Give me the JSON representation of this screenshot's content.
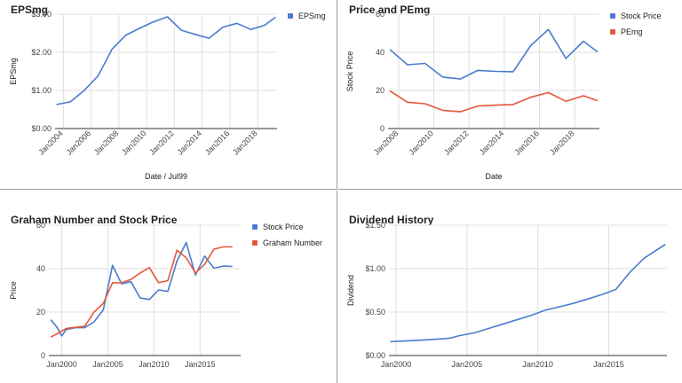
{
  "chart_data": [
    {
      "id": "eps",
      "type": "line",
      "title": "EPSmg",
      "xlabel": "Date / Jul99",
      "ylabel": "EPSmg",
      "x_type": "year",
      "xlim": [
        2003.4,
        2019.4
      ],
      "ylim": [
        0,
        3
      ],
      "yticks": [
        {
          "v": 0,
          "label": "$0.00"
        },
        {
          "v": 1,
          "label": "$1.00"
        },
        {
          "v": 2,
          "label": "$2.00"
        },
        {
          "v": 3,
          "label": "$3.00"
        }
      ],
      "xticks": [
        {
          "v": 2004,
          "label": "Jan2004"
        },
        {
          "v": 2006,
          "label": "Jan2006"
        },
        {
          "v": 2008,
          "label": "Jan2008"
        },
        {
          "v": 2010,
          "label": "Jan2010"
        },
        {
          "v": 2012,
          "label": "Jan2012"
        },
        {
          "v": 2014,
          "label": "Jan2014"
        },
        {
          "v": 2016,
          "label": "Jan2016"
        },
        {
          "v": 2018,
          "label": "Jan2018"
        }
      ],
      "x_label_style": "rotated",
      "legend": "right",
      "series": [
        {
          "name": "EPSmg",
          "color": "#4a7bd0",
          "x": [
            2003.5,
            2004.5,
            2005.5,
            2006.5,
            2007.5,
            2008.5,
            2009.5,
            2010.5,
            2011.5,
            2012.5,
            2013.5,
            2014.5,
            2015.5,
            2016.5,
            2017.5,
            2018.5,
            2019.3
          ],
          "y": [
            0.63,
            0.7,
            1.0,
            1.38,
            2.08,
            2.45,
            2.63,
            2.8,
            2.93,
            2.58,
            2.47,
            2.37,
            2.66,
            2.76,
            2.6,
            2.71,
            2.92
          ]
        }
      ]
    },
    {
      "id": "price",
      "type": "line",
      "title": "Price and PEmg",
      "xlabel": "Date",
      "ylabel": "Stock Price",
      "x_type": "year",
      "xlim": [
        2007.4,
        2019.4
      ],
      "ylim": [
        0,
        60
      ],
      "yticks": [
        {
          "v": 0,
          "label": "0"
        },
        {
          "v": 20,
          "label": "20"
        },
        {
          "v": 40,
          "label": "40"
        },
        {
          "v": 60,
          "label": "60"
        }
      ],
      "xticks": [
        {
          "v": 2008,
          "label": "Jan2008"
        },
        {
          "v": 2010,
          "label": "Jan2010"
        },
        {
          "v": 2012,
          "label": "Jan2012"
        },
        {
          "v": 2014,
          "label": "Jan2014"
        },
        {
          "v": 2016,
          "label": "Jan2016"
        },
        {
          "v": 2018,
          "label": "Jan2018"
        }
      ],
      "x_label_style": "rotated",
      "legend": "right",
      "series": [
        {
          "name": "Stock Price",
          "color": "#4a7bd0",
          "x": [
            2007.5,
            2008.5,
            2009.5,
            2010.5,
            2011.5,
            2012.5,
            2013.5,
            2014.5,
            2015.5,
            2016.5,
            2017.5,
            2018.5,
            2019.3
          ],
          "y": [
            41.5,
            33.5,
            34.2,
            27.0,
            26.0,
            30.5,
            30.0,
            29.8,
            43.5,
            52.0,
            36.8,
            45.8,
            40.2
          ]
        },
        {
          "name": "PEmg",
          "color": "#e4573b",
          "x": [
            2007.5,
            2008.5,
            2009.5,
            2010.5,
            2011.5,
            2012.5,
            2013.5,
            2014.5,
            2015.5,
            2016.5,
            2017.5,
            2018.5,
            2019.3
          ],
          "y": [
            19.8,
            13.8,
            13.0,
            9.6,
            8.8,
            11.8,
            12.3,
            12.6,
            16.4,
            18.9,
            14.3,
            17.2,
            14.6
          ]
        }
      ]
    },
    {
      "id": "graham",
      "type": "line",
      "title": "Graham Number and Stock Price",
      "xlabel": "",
      "ylabel": "Price",
      "x_type": "year",
      "xlim": [
        1998.6,
        2019.4
      ],
      "ylim": [
        0,
        60
      ],
      "yticks": [
        {
          "v": 0,
          "label": "0"
        },
        {
          "v": 20,
          "label": "20"
        },
        {
          "v": 40,
          "label": "40"
        },
        {
          "v": 60,
          "label": "60"
        }
      ],
      "xticks": [
        {
          "v": 2000,
          "label": "Jan2000"
        },
        {
          "v": 2005,
          "label": "Jan2005"
        },
        {
          "v": 2010,
          "label": "Jan2010"
        },
        {
          "v": 2015,
          "label": "Jan2015"
        }
      ],
      "x_label_style": "flat",
      "legend": "right",
      "series": [
        {
          "name": "Stock Price",
          "color": "#4a7bd0",
          "x": [
            1998.8,
            1999.5,
            2000.0,
            2000.5,
            2001.5,
            2002.5,
            2003.5,
            2004.5,
            2005.5,
            2006.5,
            2007.5,
            2008.5,
            2009.5,
            2010.5,
            2011.5,
            2012.5,
            2013.5,
            2014.5,
            2015.5,
            2016.5,
            2017.5,
            2018.5
          ],
          "y": [
            16.5,
            13.0,
            9.0,
            12.0,
            12.8,
            12.8,
            15.5,
            21.0,
            41.5,
            33.0,
            34.0,
            26.5,
            25.8,
            30.2,
            29.5,
            43.5,
            52.0,
            37.0,
            45.8,
            40.2,
            41.2,
            41.0
          ]
        },
        {
          "name": "Graham Number",
          "color": "#e4573b",
          "x": [
            1998.8,
            1999.5,
            2000.5,
            2001.5,
            2002.5,
            2003.5,
            2004.5,
            2005.5,
            2006.5,
            2007.5,
            2008.5,
            2009.5,
            2010.5,
            2011.5,
            2012.5,
            2013.5,
            2014.5,
            2015.5,
            2016.5,
            2017.5,
            2018.5
          ],
          "y": [
            8.5,
            10.0,
            12.5,
            13.0,
            13.5,
            20.0,
            24.0,
            33.5,
            33.5,
            35.0,
            38.0,
            40.5,
            33.5,
            34.5,
            48.5,
            45.0,
            38.0,
            42.0,
            49.0,
            50.0,
            50.0
          ]
        }
      ]
    },
    {
      "id": "div",
      "type": "line",
      "title": "Dividend History",
      "xlabel": "",
      "ylabel": "Dividend",
      "x_type": "year",
      "xlim": [
        1999.5,
        2019.1
      ],
      "ylim": [
        0,
        1.5
      ],
      "yticks": [
        {
          "v": 0,
          "label": "$0.00"
        },
        {
          "v": 0.5,
          "label": "$0.50"
        },
        {
          "v": 1.0,
          "label": "$1.00"
        },
        {
          "v": 1.5,
          "label": "$1.50"
        }
      ],
      "xticks": [
        {
          "v": 2000,
          "label": "Jan2000"
        },
        {
          "v": 2005,
          "label": "Jan2005"
        },
        {
          "v": 2010,
          "label": "Jan2010"
        },
        {
          "v": 2015,
          "label": "Jan2015"
        }
      ],
      "x_label_style": "flat",
      "legend": "none",
      "series": [
        {
          "name": "",
          "color": "#4a7bd0",
          "x": [
            1999.6,
            2001.0,
            2002.0,
            2003.0,
            2003.8,
            2004.5,
            2005.5,
            2006.5,
            2007.5,
            2008.5,
            2009.5,
            2010.5,
            2011.5,
            2012.5,
            2013.5,
            2014.5,
            2015.5,
            2016.5,
            2017.5,
            2019.0
          ],
          "y": [
            0.16,
            0.17,
            0.18,
            0.19,
            0.2,
            0.23,
            0.26,
            0.31,
            0.36,
            0.41,
            0.46,
            0.52,
            0.56,
            0.6,
            0.65,
            0.7,
            0.76,
            0.96,
            1.12,
            1.28
          ]
        }
      ]
    }
  ]
}
